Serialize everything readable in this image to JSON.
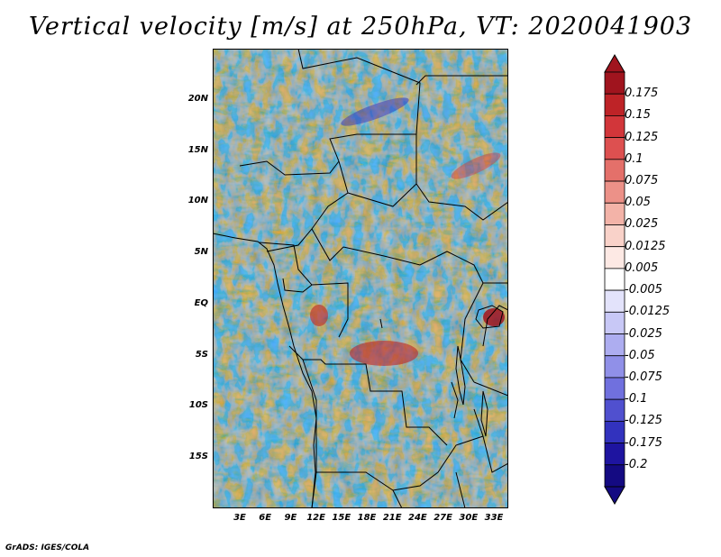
{
  "title": "Vertical velocity [m/s] at 250hPa, VT: 2020041903",
  "map": {
    "latitude_labels": [
      "20N",
      "15N",
      "10N",
      "5N",
      "EQ",
      "5S",
      "10S",
      "15S"
    ],
    "longitude_labels": [
      "3E",
      "6E",
      "9E",
      "12E",
      "15E",
      "18E",
      "21E",
      "24E",
      "27E",
      "30E",
      "33E"
    ],
    "field": "vertical velocity",
    "units": "m/s",
    "level": "250hPa"
  },
  "colorbar": {
    "labels": [
      "0.175",
      "0.15",
      "0.125",
      "0.1",
      "0.075",
      "0.05",
      "0.025",
      "0.0125",
      "0.005",
      "-0.005",
      "-0.0125",
      "-0.025",
      "-0.05",
      "-0.075",
      "-0.1",
      "-0.125",
      "-0.175",
      "-0.2"
    ],
    "colors": [
      "#a0141e",
      "#be2327",
      "#d2363a",
      "#dd5050",
      "#e4706a",
      "#ec9188",
      "#f3b3a8",
      "#f9d2c9",
      "#fde9e4",
      "#ffffff",
      "#e3e3fb",
      "#c8c8f6",
      "#adadf0",
      "#9090e8",
      "#7070de",
      "#5050cf",
      "#3232be",
      "#1e14a0",
      "#140a82"
    ]
  },
  "footer": "GrADS: IGES/COLA"
}
